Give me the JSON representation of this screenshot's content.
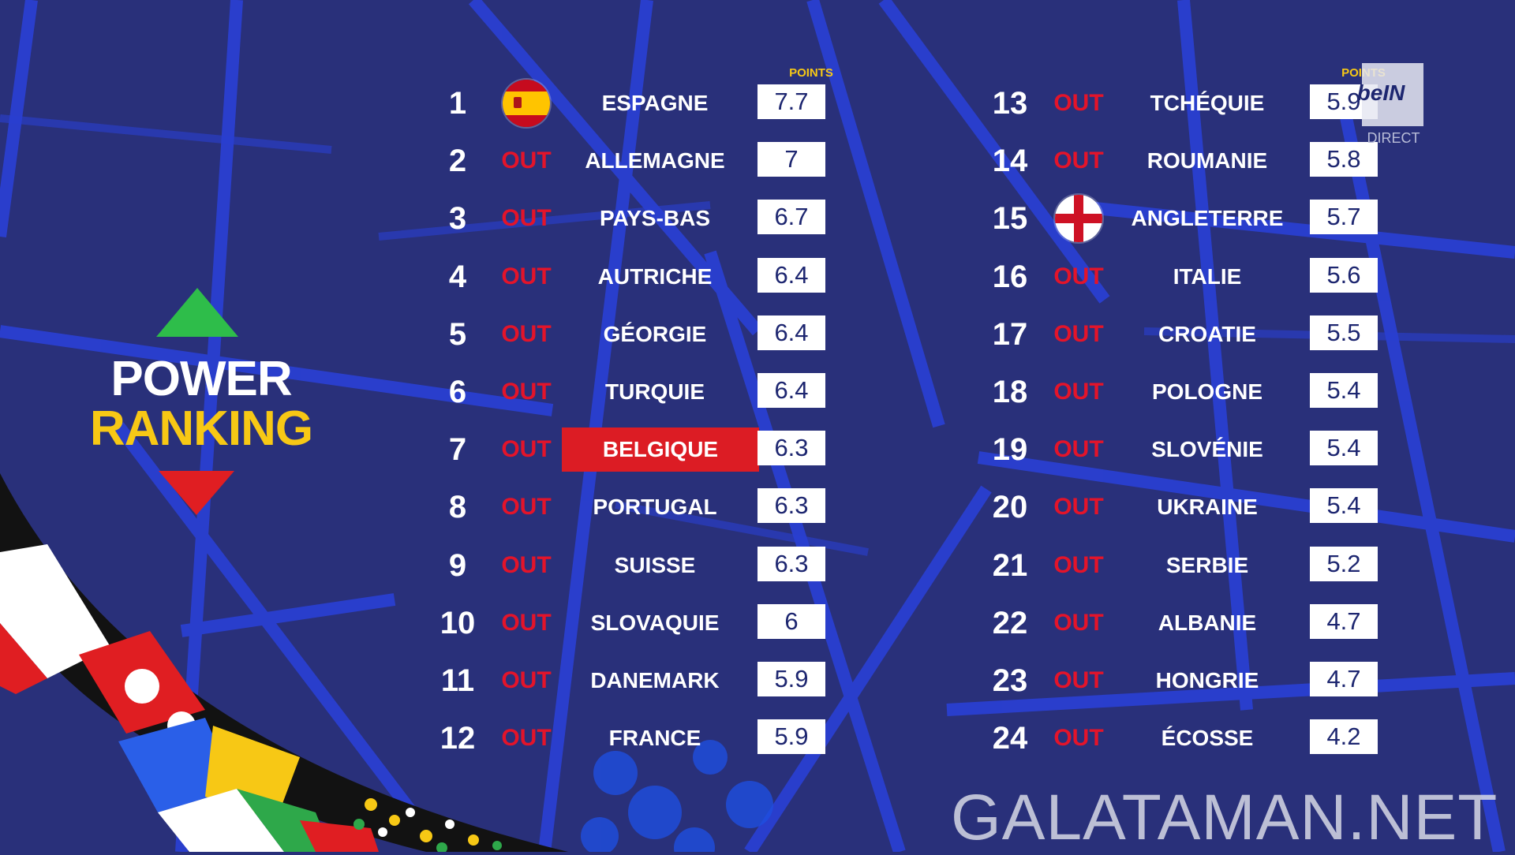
{
  "logo": {
    "line1": "POWER",
    "line2": "RANKING"
  },
  "points_header": "POINTS",
  "channel": {
    "badge": "beIN",
    "status": "DIRECT"
  },
  "watermark": "GALATAMAN.NET",
  "colors": {
    "background": "#29307a",
    "accent_yellow": "#f7c815",
    "out_red": "#e3142a",
    "highlight": "#dc1c24"
  },
  "rankings": [
    {
      "rank": "1",
      "status": "",
      "flag": "spain-flag-icon",
      "country": "ESPAGNE",
      "points": "7.7"
    },
    {
      "rank": "2",
      "status": "OUT",
      "country": "ALLEMAGNE",
      "points": "7"
    },
    {
      "rank": "3",
      "status": "OUT",
      "country": "PAYS-BAS",
      "points": "6.7"
    },
    {
      "rank": "4",
      "status": "OUT",
      "country": "AUTRICHE",
      "points": "6.4"
    },
    {
      "rank": "5",
      "status": "OUT",
      "country": "GÉORGIE",
      "points": "6.4"
    },
    {
      "rank": "6",
      "status": "OUT",
      "country": "TURQUIE",
      "points": "6.4"
    },
    {
      "rank": "7",
      "status": "OUT",
      "country": "BELGIQUE",
      "points": "6.3",
      "highlight": true
    },
    {
      "rank": "8",
      "status": "OUT",
      "country": "PORTUGAL",
      "points": "6.3"
    },
    {
      "rank": "9",
      "status": "OUT",
      "country": "SUISSE",
      "points": "6.3"
    },
    {
      "rank": "10",
      "status": "OUT",
      "country": "SLOVAQUIE",
      "points": "6"
    },
    {
      "rank": "11",
      "status": "OUT",
      "country": "DANEMARK",
      "points": "5.9"
    },
    {
      "rank": "12",
      "status": "OUT",
      "country": "FRANCE",
      "points": "5.9"
    },
    {
      "rank": "13",
      "status": "OUT",
      "country": "TCHÉQUIE",
      "points": "5.9"
    },
    {
      "rank": "14",
      "status": "OUT",
      "country": "ROUMANIE",
      "points": "5.8"
    },
    {
      "rank": "15",
      "status": "",
      "flag": "england-flag-icon",
      "country": "ANGLETERRE",
      "points": "5.7"
    },
    {
      "rank": "16",
      "status": "OUT",
      "country": "ITALIE",
      "points": "5.6"
    },
    {
      "rank": "17",
      "status": "OUT",
      "country": "CROATIE",
      "points": "5.5"
    },
    {
      "rank": "18",
      "status": "OUT",
      "country": "POLOGNE",
      "points": "5.4"
    },
    {
      "rank": "19",
      "status": "OUT",
      "country": "SLOVÉNIE",
      "points": "5.4"
    },
    {
      "rank": "20",
      "status": "OUT",
      "country": "UKRAINE",
      "points": "5.4"
    },
    {
      "rank": "21",
      "status": "OUT",
      "country": "SERBIE",
      "points": "5.2"
    },
    {
      "rank": "22",
      "status": "OUT",
      "country": "ALBANIE",
      "points": "4.7"
    },
    {
      "rank": "23",
      "status": "OUT",
      "country": "HONGRIE",
      "points": "4.7"
    },
    {
      "rank": "24",
      "status": "OUT",
      "country": "ÉCOSSE",
      "points": "4.2"
    }
  ]
}
